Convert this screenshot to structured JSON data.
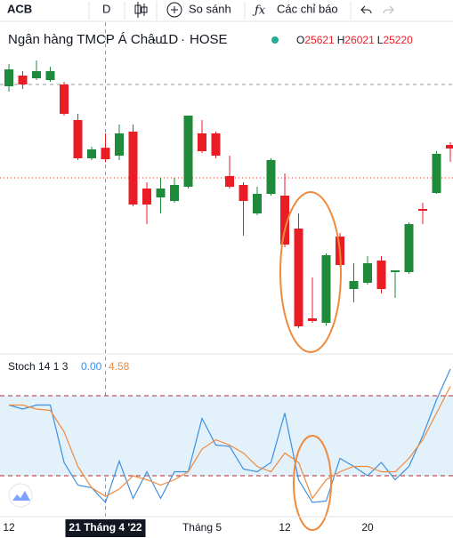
{
  "toolbar": {
    "symbol": "ACB",
    "interval": "D",
    "compare": "So sánh",
    "indicators": "Các chỉ báo"
  },
  "chart_data": [
    {
      "type": "candlestick",
      "title": "Ngân hàng TMCP Á Châu",
      "interval": "1D",
      "exchange": "HOSE",
      "readout_labels": [
        "O",
        "H",
        "L"
      ],
      "categories": [
        "12",
        null,
        null,
        null,
        null,
        null,
        null,
        "21 Tháng 4 '22",
        null,
        null,
        null,
        null,
        null,
        null,
        "Tháng 5",
        null,
        null,
        null,
        null,
        null,
        "12",
        null,
        null,
        null,
        null,
        null,
        "20",
        null,
        null,
        null,
        null,
        null,
        null
      ],
      "open": [
        27350,
        27650,
        27575,
        27525,
        27400,
        26400,
        25325,
        25621,
        25400,
        26075,
        24475,
        24225,
        24125,
        24525,
        26025,
        26025,
        24825,
        24575,
        23775,
        24325,
        24275,
        23350,
        20825,
        20700,
        23125,
        21650,
        21825,
        22450,
        22125,
        22125,
        23900,
        24350,
        25700
      ],
      "high": [
        27975,
        27775,
        28075,
        27900,
        27475,
        26575,
        25650,
        26021,
        26275,
        26275,
        24650,
        24775,
        24775,
        26525,
        26400,
        26075,
        25400,
        24650,
        24525,
        25325,
        24900,
        23775,
        21975,
        22650,
        23225,
        22375,
        22575,
        22575,
        22175,
        23525,
        24075,
        25525,
        25775
      ],
      "low": [
        27200,
        27275,
        27525,
        27475,
        26525,
        25275,
        25275,
        25220,
        25275,
        23975,
        23475,
        23775,
        24075,
        24475,
        25475,
        25325,
        24475,
        23150,
        23725,
        24275,
        22825,
        20550,
        20700,
        20625,
        22275,
        21275,
        21775,
        21525,
        21400,
        22075,
        23475,
        24325,
        25225
      ],
      "close": [
        27825,
        27400,
        27775,
        27775,
        26575,
        25325,
        25575,
        25300,
        26025,
        24025,
        24025,
        24475,
        24575,
        26525,
        25525,
        25400,
        24525,
        24125,
        24325,
        25275,
        22900,
        20600,
        20750,
        22600,
        22325,
        21875,
        22375,
        21650,
        22175,
        23475,
        23850,
        25450,
        25600
      ],
      "up_color": "#1f8b3a",
      "down_color": "#ea1c24",
      "price_line": 24775,
      "price_line_color": "#d9342b",
      "ylim": [
        19900,
        28400
      ]
    },
    {
      "type": "line",
      "title": "Stoch 14 1 3",
      "series": [
        {
          "color": "#3d8fe0",
          "values": [
            73,
            70,
            73,
            73,
            30,
            13,
            11,
            0,
            31,
            3,
            23,
            3,
            23,
            23,
            63,
            43,
            42,
            25,
            23,
            30,
            67,
            17,
            0,
            1,
            33,
            27,
            20,
            30,
            17,
            27,
            50,
            77,
            100
          ]
        },
        {
          "color": "#f08a3c",
          "values": [
            73,
            73,
            70,
            69,
            53,
            27,
            11,
            4.58,
            10,
            20,
            17,
            13,
            17,
            23,
            40,
            47,
            43,
            37,
            27,
            23,
            37,
            30,
            3,
            17,
            23,
            27,
            27,
            23,
            23,
            33,
            47,
            67,
            87
          ]
        }
      ],
      "readout": [
        {
          "value": 0,
          "label": "0.00"
        },
        {
          "value": 4.58,
          "label": "4.58"
        }
      ],
      "yticks": [
        20,
        80
      ],
      "band_color": "#e3f1fb",
      "ylim": [
        0,
        100
      ]
    }
  ]
}
